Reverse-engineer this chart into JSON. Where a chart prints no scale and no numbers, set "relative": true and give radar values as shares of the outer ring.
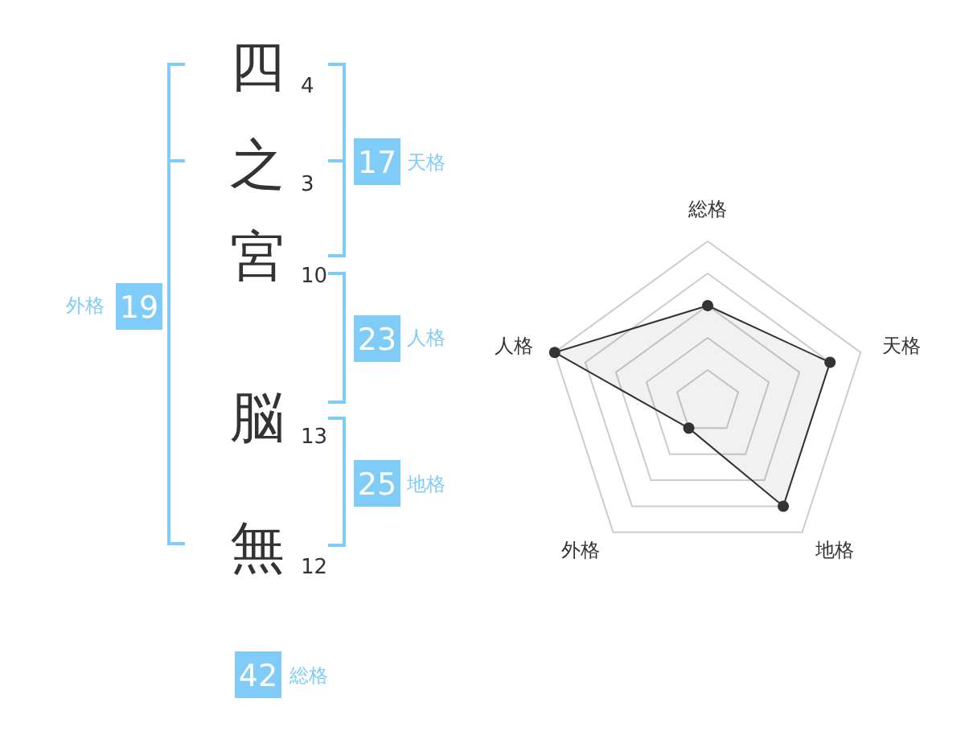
{
  "chart_data": [
    {
      "type": "other",
      "categories": [
        "四",
        "之",
        "宮",
        "脳",
        "無"
      ],
      "values": [
        4,
        3,
        10,
        13,
        12
      ],
      "data_labels": true
    },
    {
      "type": "other",
      "categories": [
        "天格",
        "人格",
        "地格",
        "外格",
        "総格"
      ],
      "values": [
        17,
        23,
        25,
        19,
        42
      ],
      "color": "#80ccf8",
      "data_labels": true
    },
    {
      "type": "radar",
      "categories": [
        "総格",
        "天格",
        "地格",
        "外格",
        "人格"
      ],
      "relative": true,
      "grid": true,
      "marker": "circle",
      "series": [
        {
          "color": "#333333",
          "values": [
            0.6,
            0.8,
            0.8,
            0.2,
            1.0
          ]
        }
      ]
    }
  ]
}
